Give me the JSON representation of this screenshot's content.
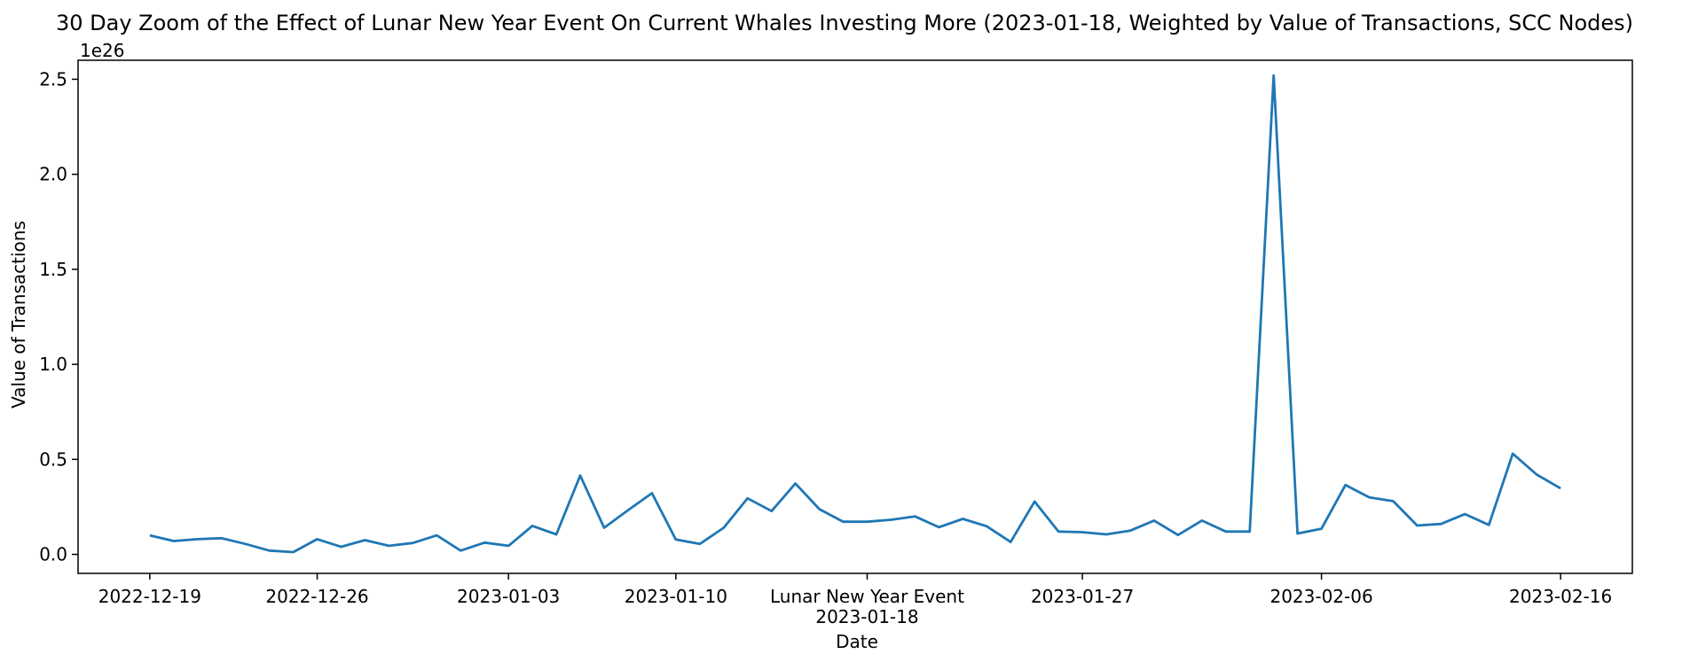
{
  "chart_data": {
    "type": "line",
    "title": "30 Day Zoom of the Effect of Lunar New Year Event On Current Whales Investing More (2023-01-18, Weighted by Value of Transactions, SCC Nodes)",
    "xlabel": "Date",
    "ylabel": "Value of Transactions",
    "y_multiplier_label": "1e26",
    "y_scale": 1e+26,
    "ylim": [
      -0.1,
      2.6
    ],
    "xlim": [
      "2022-12-16",
      "2023-02-19"
    ],
    "grid": false,
    "line_color": "#1f77b4",
    "x_ticks": [
      {
        "date": "2022-12-19",
        "label": "2022-12-19"
      },
      {
        "date": "2022-12-26",
        "label": "2022-12-26"
      },
      {
        "date": "2023-01-03",
        "label": "2023-01-03"
      },
      {
        "date": "2023-01-10",
        "label": "2023-01-10"
      },
      {
        "date": "2023-01-18",
        "label": "2023-01-18",
        "event_label": "Lunar New Year Event"
      },
      {
        "date": "2023-01-27",
        "label": "2023-01-27"
      },
      {
        "date": "2023-02-06",
        "label": "2023-02-06"
      },
      {
        "date": "2023-02-16",
        "label": "2023-02-16"
      }
    ],
    "y_ticks": [
      {
        "value": 0.0,
        "label": "0.0"
      },
      {
        "value": 0.5,
        "label": "0.5"
      },
      {
        "value": 1.0,
        "label": "1.0"
      },
      {
        "value": 1.5,
        "label": "1.5"
      },
      {
        "value": 2.0,
        "label": "2.0"
      },
      {
        "value": 2.5,
        "label": "2.5"
      }
    ],
    "series": [
      {
        "x": [
          "2022-12-19",
          "2022-12-20",
          "2022-12-21",
          "2022-12-22",
          "2022-12-23",
          "2022-12-24",
          "2022-12-25",
          "2022-12-26",
          "2022-12-27",
          "2022-12-28",
          "2022-12-29",
          "2022-12-30",
          "2022-12-31",
          "2023-01-01",
          "2023-01-02",
          "2023-01-03",
          "2023-01-04",
          "2023-01-05",
          "2023-01-06",
          "2023-01-07",
          "2023-01-08",
          "2023-01-09",
          "2023-01-10",
          "2023-01-11",
          "2023-01-12",
          "2023-01-13",
          "2023-01-14",
          "2023-01-15",
          "2023-01-16",
          "2023-01-17",
          "2023-01-18",
          "2023-01-19",
          "2023-01-20",
          "2023-01-21",
          "2023-01-22",
          "2023-01-23",
          "2023-01-24",
          "2023-01-25",
          "2023-01-26",
          "2023-01-27",
          "2023-01-28",
          "2023-01-29",
          "2023-01-30",
          "2023-01-31",
          "2023-02-01",
          "2023-02-02",
          "2023-02-03",
          "2023-02-04",
          "2023-02-05",
          "2023-02-06",
          "2023-02-07",
          "2023-02-08",
          "2023-02-09",
          "2023-02-10",
          "2023-02-11",
          "2023-02-12",
          "2023-02-13",
          "2023-02-14",
          "2023-02-15",
          "2023-02-16"
        ],
        "y": [
          0.1,
          0.07,
          0.08,
          0.085,
          0.055,
          0.02,
          0.012,
          0.08,
          0.04,
          0.075,
          0.045,
          0.06,
          0.1,
          0.02,
          0.062,
          0.045,
          0.15,
          0.105,
          0.415,
          0.14,
          0.232,
          0.322,
          0.078,
          0.055,
          0.14,
          0.295,
          0.228,
          0.373,
          0.238,
          0.172,
          0.172,
          0.182,
          0.2,
          0.143,
          0.187,
          0.148,
          0.065,
          0.278,
          0.12,
          0.117,
          0.105,
          0.125,
          0.178,
          0.102,
          0.178,
          0.12,
          0.12,
          2.52,
          0.11,
          0.135,
          0.365,
          0.3,
          0.28,
          0.152,
          0.16,
          0.212,
          0.155,
          0.53,
          0.42,
          0.347
        ]
      }
    ]
  }
}
